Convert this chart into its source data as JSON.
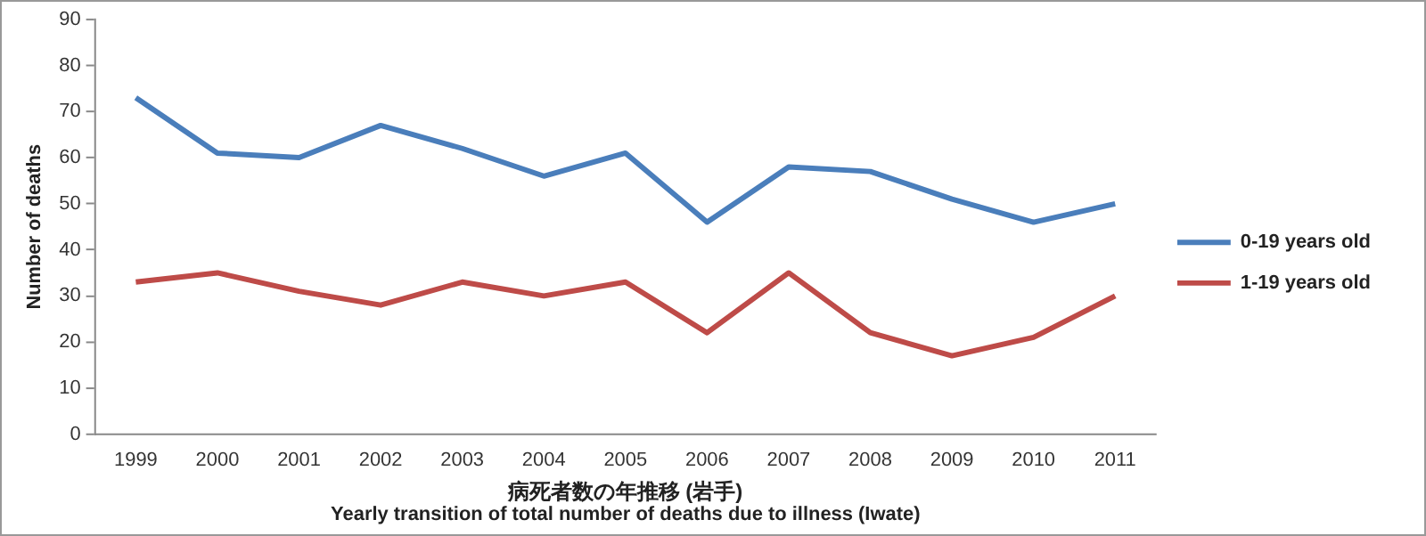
{
  "chart_data": {
    "type": "line",
    "ylabel": "Number of deaths",
    "xlabel": "病死者数の年推移 (岩手)",
    "annotations": [
      "Yearly transition of total number of deaths due to illness (Iwate)"
    ],
    "categories": [
      "1999",
      "2000",
      "2001",
      "2002",
      "2003",
      "2004",
      "2005",
      "2006",
      "2007",
      "2008",
      "2009",
      "2010",
      "2011"
    ],
    "series": [
      {
        "name": "0-19 years old",
        "color": "#4a7ebb",
        "values": [
          73,
          61,
          60,
          67,
          62,
          56,
          61,
          46,
          58,
          57,
          51,
          46,
          50
        ]
      },
      {
        "name": "1-19 years old",
        "color": "#be4b48",
        "values": [
          33,
          35,
          31,
          28,
          33,
          30,
          33,
          22,
          35,
          22,
          17,
          21,
          30
        ]
      }
    ],
    "ylim": [
      0,
      90
    ],
    "yticks": [
      0,
      10,
      20,
      30,
      40,
      50,
      60,
      70,
      80,
      90
    ],
    "grid": false,
    "legend": "right",
    "marker": "none",
    "line_style": "solid"
  }
}
